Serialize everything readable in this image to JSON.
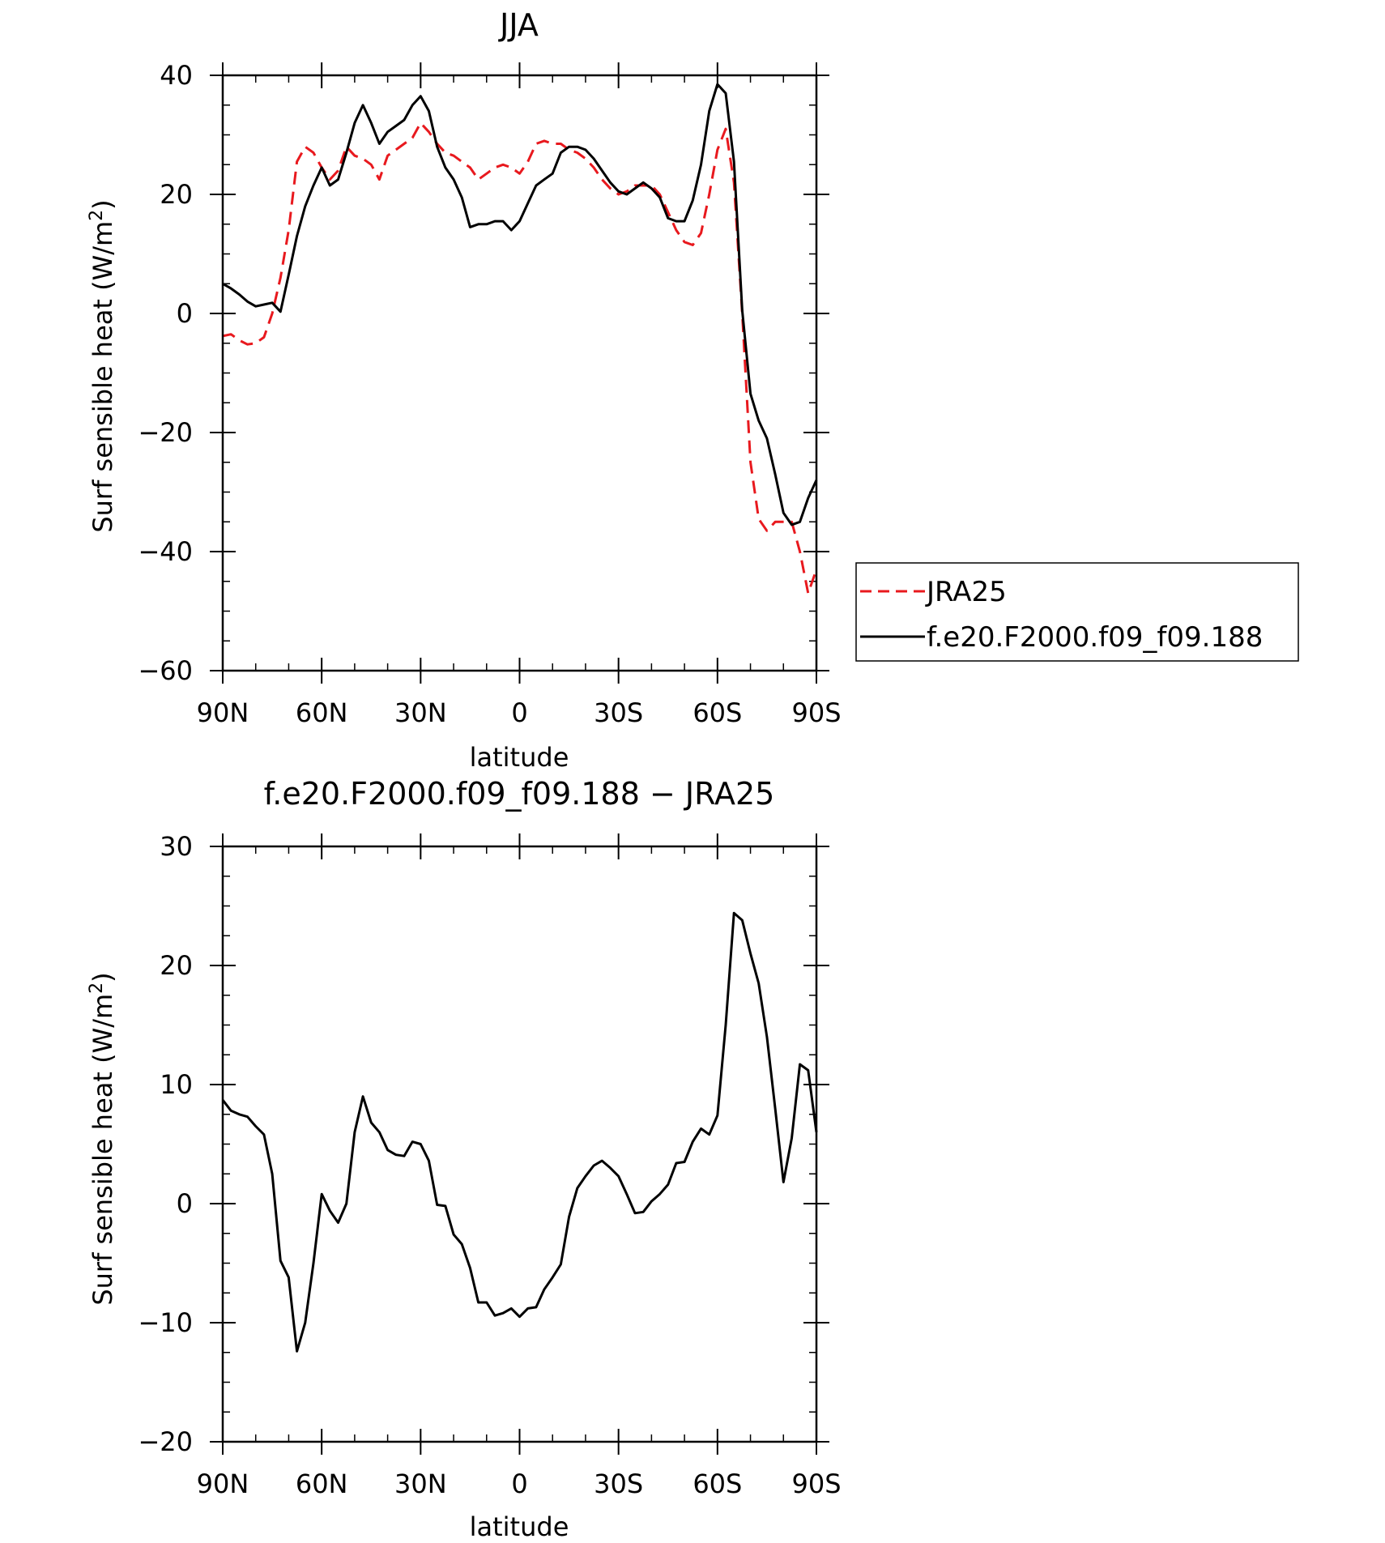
{
  "chart_data": [
    {
      "type": "line",
      "title": "JJA",
      "xlabel": "latitude",
      "ylabel": "Surf sensible heat (W/m²)",
      "ylabel_main": "Surf sensible heat (W/m",
      "ylabel_sup": "2",
      "ylabel_end": ")",
      "xlim": [
        90,
        -90
      ],
      "ylim": [
        -60,
        40
      ],
      "x_ticks": [
        90,
        60,
        30,
        0,
        -30,
        -60,
        -90
      ],
      "x_tick_labels": [
        "90N",
        "60N",
        "30N",
        "0",
        "30S",
        "60S",
        "90S"
      ],
      "y_ticks": [
        40,
        20,
        0,
        -20,
        -40,
        -60
      ],
      "y_tick_labels": [
        "40",
        "20",
        "0",
        "−20",
        "−40",
        "−60"
      ],
      "legend_position": "right",
      "series": [
        {
          "name": "JRA25",
          "color": "#e8191e",
          "style": "dashed",
          "x": [
            90,
            87.5,
            85,
            82.5,
            80,
            77.5,
            75,
            72.5,
            70,
            67.5,
            65,
            62.5,
            60,
            57.5,
            55,
            52.5,
            50,
            47.5,
            45,
            42.5,
            40,
            37.5,
            35,
            32.5,
            30,
            27.5,
            25,
            22.5,
            20,
            17.5,
            15,
            12.5,
            10,
            7.5,
            5,
            2.5,
            0,
            -2.5,
            -5,
            -7.5,
            -10,
            -12.5,
            -15,
            -17.5,
            -20,
            -22.5,
            -25,
            -27.5,
            -30,
            -32.5,
            -35,
            -37.5,
            -40,
            -42.5,
            -45,
            -47.5,
            -50,
            -52.5,
            -55,
            -57.5,
            -60,
            -62.5,
            -65,
            -67.5,
            -70,
            -72.5,
            -75,
            -77.5,
            -80,
            -82.5,
            -85,
            -87.5,
            -90
          ],
          "values": [
            -3.8,
            -3.5,
            -4.5,
            -5.2,
            -5,
            -4,
            0,
            6,
            14,
            25.5,
            28,
            27,
            24.5,
            22.5,
            24,
            28,
            26.5,
            26,
            25,
            22.5,
            26.5,
            27.5,
            28.5,
            29.5,
            32,
            30.5,
            28.5,
            27,
            26.5,
            25.5,
            24.5,
            22.5,
            23.5,
            24.5,
            25,
            24.5,
            23.5,
            25.5,
            28.5,
            29,
            28.5,
            28.5,
            27.5,
            27,
            26,
            24.5,
            22.5,
            21,
            20,
            20.5,
            21.5,
            21.5,
            21.5,
            20,
            17,
            14,
            12,
            11.5,
            13.5,
            20,
            27.5,
            31,
            22,
            0,
            -25,
            -34.5,
            -36.5,
            -35,
            -35,
            -35,
            -40,
            -47,
            -43
          ]
        },
        {
          "name": "f.e20.F2000.f09_f09.188",
          "color": "#000000",
          "style": "solid",
          "x": [
            90,
            87.5,
            85,
            82.5,
            80,
            77.5,
            75,
            72.5,
            70,
            67.5,
            65,
            62.5,
            60,
            57.5,
            55,
            52.5,
            50,
            47.5,
            45,
            42.5,
            40,
            37.5,
            35,
            32.5,
            30,
            27.5,
            25,
            22.5,
            20,
            17.5,
            15,
            12.5,
            10,
            7.5,
            5,
            2.5,
            0,
            -2.5,
            -5,
            -7.5,
            -10,
            -12.5,
            -15,
            -17.5,
            -20,
            -22.5,
            -25,
            -27.5,
            -30,
            -32.5,
            -35,
            -37.5,
            -40,
            -42.5,
            -45,
            -47.5,
            -50,
            -52.5,
            -55,
            -57.5,
            -60,
            -62.5,
            -65,
            -67.5,
            -70,
            -72.5,
            -75,
            -77.5,
            -80,
            -82.5,
            -85,
            -87.5,
            -90
          ],
          "values": [
            5,
            4.2,
            3.2,
            2,
            1.2,
            1.5,
            1.8,
            0.3,
            6.5,
            13,
            18,
            21.5,
            24.5,
            21.5,
            22.5,
            27,
            32,
            35,
            32,
            28.5,
            30.5,
            31.5,
            32.5,
            35,
            36.5,
            34,
            28,
            24.5,
            22.5,
            19.5,
            14.5,
            15,
            15,
            15.5,
            15.5,
            14,
            15.5,
            18.5,
            21.5,
            22.5,
            23.5,
            27,
            28,
            28,
            27.5,
            26,
            24,
            22,
            20.5,
            20,
            21,
            22,
            21,
            19.5,
            16,
            15.5,
            15.5,
            19,
            25,
            34,
            38.5,
            37,
            25.5,
            0.5,
            -13.5,
            -18,
            -21,
            -27,
            -33.5,
            -35.5,
            -35,
            -31,
            -28
          ]
        }
      ]
    },
    {
      "type": "line",
      "title": "f.e20.F2000.f09_f09.188 − JRA25",
      "xlabel": "latitude",
      "ylabel": "Surf sensible heat (W/m²)",
      "ylabel_main": "Surf sensible heat (W/m",
      "ylabel_sup": "2",
      "ylabel_end": ")",
      "xlim": [
        90,
        -90
      ],
      "ylim": [
        -20,
        30
      ],
      "x_ticks": [
        90,
        60,
        30,
        0,
        -30,
        -60,
        -90
      ],
      "x_tick_labels": [
        "90N",
        "60N",
        "30N",
        "0",
        "30S",
        "60S",
        "90S"
      ],
      "y_ticks": [
        30,
        20,
        10,
        0,
        -10,
        -20
      ],
      "y_tick_labels": [
        "30",
        "20",
        "10",
        "0",
        "−10",
        "−20"
      ],
      "series": [
        {
          "color": "#000000",
          "style": "solid",
          "x": [
            90,
            87.5,
            85,
            82.5,
            80,
            77.5,
            75,
            72.5,
            70,
            67.5,
            65,
            62.5,
            60,
            57.5,
            55,
            52.5,
            50,
            47.5,
            45,
            42.5,
            40,
            37.5,
            35,
            32.5,
            30,
            27.5,
            25,
            22.5,
            20,
            17.5,
            15,
            12.5,
            10,
            7.5,
            5,
            2.5,
            0,
            -2.5,
            -5,
            -7.5,
            -10,
            -12.5,
            -15,
            -17.5,
            -20,
            -22.5,
            -25,
            -27.5,
            -30,
            -32.5,
            -35,
            -37.5,
            -40,
            -42.5,
            -45,
            -47.5,
            -50,
            -52.5,
            -55,
            -57.5,
            -60,
            -62.5,
            -65,
            -67.5,
            -70,
            -72.5,
            -75,
            -77.5,
            -80,
            -82.5,
            -85,
            -87.5,
            -90
          ],
          "values": [
            8.7,
            7.8,
            7.5,
            7.3,
            6.5,
            5.8,
            2.5,
            -4.8,
            -6.2,
            -12.4,
            -10,
            -5,
            0.8,
            -0.6,
            -1.6,
            0,
            6,
            9,
            6.8,
            6,
            4.5,
            4.1,
            4,
            5.2,
            5,
            3.6,
            -0.1,
            -0.2,
            -2.6,
            -3.4,
            -5.4,
            -8.3,
            -8.3,
            -9.4,
            -9.2,
            -8.8,
            -9.5,
            -8.8,
            -8.7,
            -7.2,
            -6.2,
            -5.1,
            -1.1,
            1.3,
            2.3,
            3.2,
            3.6,
            3,
            2.3,
            0.8,
            -0.8,
            -0.7,
            0.2,
            0.8,
            1.6,
            3.4,
            3.5,
            5.2,
            6.3,
            5.8,
            7.4,
            15,
            24.4,
            23.8,
            21,
            18.5,
            14,
            8,
            1.8,
            5.5,
            11.7,
            11.2,
            6
          ]
        }
      ]
    }
  ]
}
